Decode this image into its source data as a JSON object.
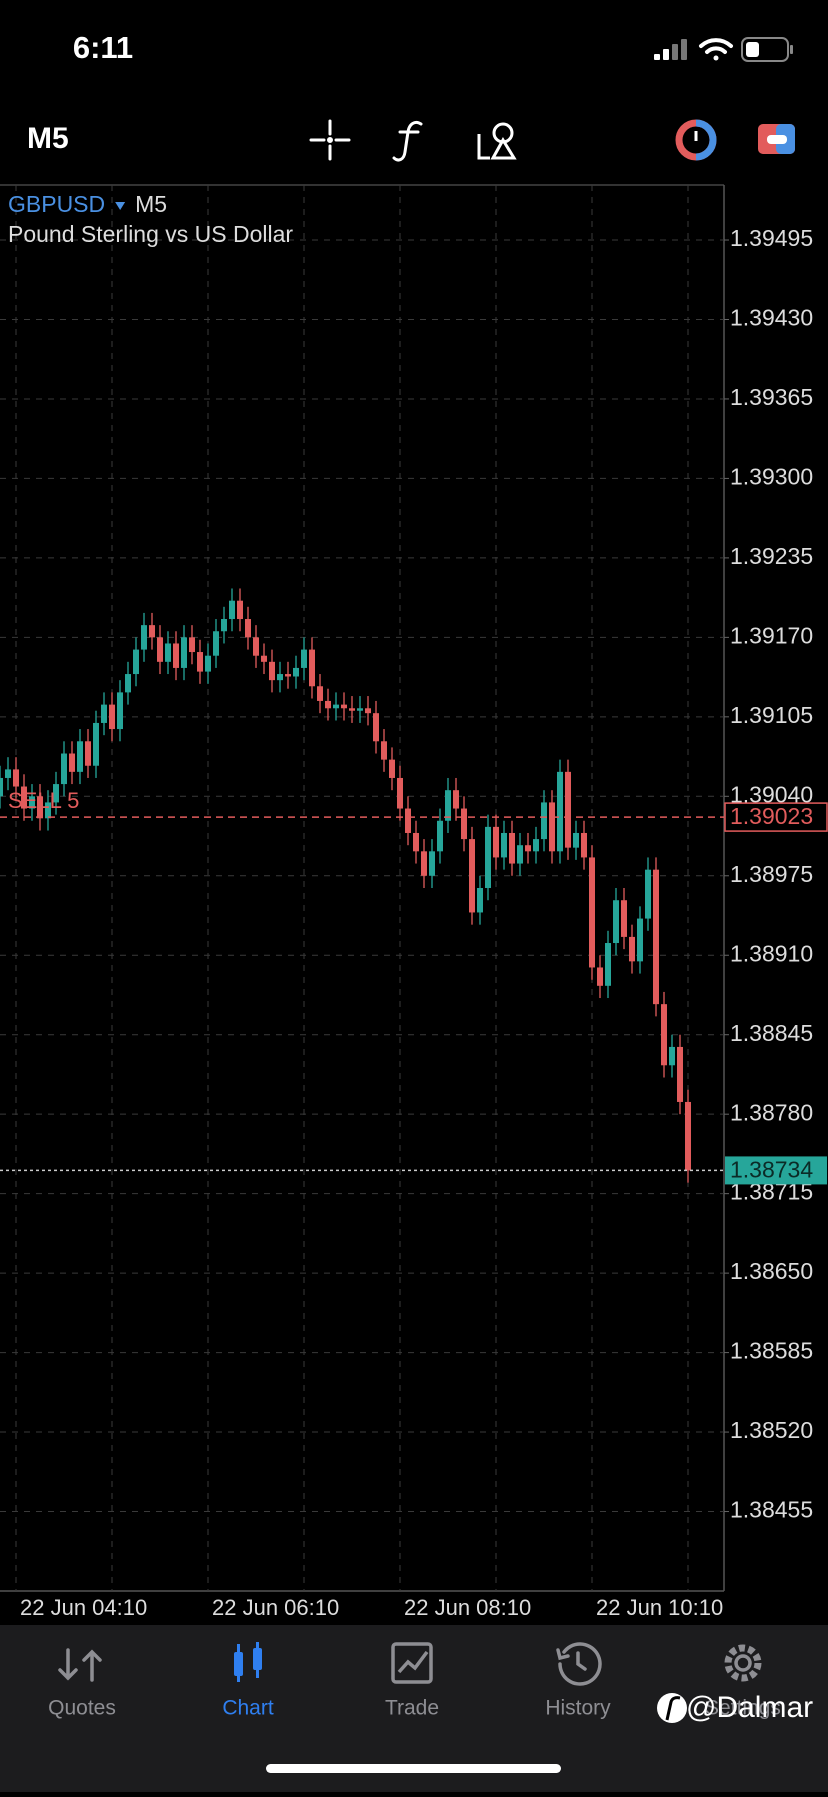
{
  "status_bar": {
    "time": "6:11"
  },
  "toolbar": {
    "timeframe": "M5"
  },
  "chart_data": {
    "type": "candlestick",
    "symbol": "GBPUSD",
    "timeframe": "M5",
    "title": "Pound Sterling vs US Dollar",
    "up_color": "#26a69a",
    "down_color": "#e25c5c",
    "grid": true,
    "ylim": [
      1.3839,
      1.3954
    ],
    "yticks": [
      1.39495,
      {
        "value": 1.3943,
        "label": "1.39430"
      },
      1.39365,
      {
        "value": 1.393,
        "label": "1.39300"
      },
      1.39235,
      {
        "value": 1.3917,
        "label": "1.39170"
      },
      1.39105,
      {
        "value": 1.3904,
        "label": "1.39040"
      },
      1.38975,
      {
        "value": 1.3891,
        "label": "1.38910"
      },
      1.38845,
      {
        "value": 1.3878,
        "label": "1.38780"
      },
      1.38715,
      {
        "value": 1.3865,
        "label": "1.38650"
      },
      1.38585,
      {
        "value": 1.3852,
        "label": "1.38520"
      },
      1.38455
    ],
    "categories": [
      null,
      null,
      "22 Jun 04:10",
      null,
      null,
      null,
      null,
      null,
      null,
      null,
      null,
      null,
      null,
      null,
      null,
      null,
      null,
      null,
      null,
      null,
      null,
      null,
      null,
      null,
      null,
      null,
      "22 Jun 06:10",
      null,
      null,
      null,
      null,
      null,
      null,
      null,
      null,
      null,
      null,
      null,
      null,
      null,
      null,
      null,
      null,
      null,
      null,
      null,
      null,
      null,
      null,
      null,
      "22 Jun 08:10",
      null,
      null,
      null,
      null,
      null,
      null,
      null,
      null,
      null,
      null,
      null,
      null,
      null,
      null,
      null,
      null,
      null,
      null,
      null,
      null,
      null,
      null,
      null,
      "22 Jun 10:10",
      null,
      null,
      null,
      null,
      null,
      null,
      null,
      null,
      null,
      null,
      null,
      null
    ],
    "open": [
      1.3904,
      1.39055,
      1.39062,
      1.39048,
      1.3903,
      1.3904,
      1.39022,
      1.39035,
      1.3905,
      1.39075,
      1.3906,
      1.39085,
      1.39065,
      1.391,
      1.39115,
      1.39095,
      1.39125,
      1.3914,
      1.3916,
      1.3918,
      1.3917,
      1.3915,
      1.39165,
      1.39145,
      1.3917,
      1.39158,
      1.39142,
      1.39155,
      1.39175,
      1.39185,
      1.392,
      1.39185,
      1.3917,
      1.39155,
      1.3915,
      1.39135,
      1.3914,
      1.39138,
      1.39145,
      1.3916,
      1.3913,
      1.39118,
      1.39112,
      1.39115,
      1.39112,
      1.3911,
      1.39112,
      1.39108,
      1.39085,
      1.3907,
      1.39055,
      1.3903,
      1.3901,
      1.38995,
      1.38975,
      1.38995,
      1.3902,
      1.39045,
      1.3903,
      1.39005,
      1.38945,
      1.38965,
      1.39015,
      1.3899,
      1.3901,
      1.38985,
      1.39,
      1.38995,
      1.39005,
      1.39035,
      1.38995,
      1.3906,
      1.38998,
      1.3901,
      1.3899,
      1.389,
      1.38885,
      1.3892,
      1.38955,
      1.38925,
      1.38905,
      1.3894,
      1.3898,
      1.3887,
      1.3882,
      1.38835,
      1.3879
    ],
    "high": [
      1.39065,
      1.39072,
      1.39072,
      1.39058,
      1.3905,
      1.3905,
      1.39045,
      1.3906,
      1.39085,
      1.39085,
      1.39095,
      1.39095,
      1.3911,
      1.39125,
      1.39125,
      1.39135,
      1.3915,
      1.3917,
      1.3919,
      1.3919,
      1.3918,
      1.39175,
      1.39175,
      1.3918,
      1.3918,
      1.39168,
      1.39165,
      1.39185,
      1.39195,
      1.3921,
      1.3921,
      1.39195,
      1.3918,
      1.39165,
      1.3916,
      1.3915,
      1.3915,
      1.39155,
      1.3917,
      1.3917,
      1.3914,
      1.39128,
      1.39125,
      1.39125,
      1.39122,
      1.39122,
      1.39122,
      1.39118,
      1.39095,
      1.3908,
      1.39065,
      1.3904,
      1.3902,
      1.39005,
      1.39005,
      1.3903,
      1.39055,
      1.39055,
      1.3904,
      1.39015,
      1.38975,
      1.39025,
      1.39025,
      1.3902,
      1.3902,
      1.3901,
      1.3901,
      1.39015,
      1.39045,
      1.39045,
      1.3907,
      1.3907,
      1.3902,
      1.3902,
      1.39,
      1.3891,
      1.3893,
      1.38965,
      1.38965,
      1.38935,
      1.3895,
      1.3899,
      1.3899,
      1.3888,
      1.38845,
      1.38845,
      1.388
    ],
    "low": [
      1.3903,
      1.39045,
      1.39038,
      1.3902,
      1.3902,
      1.39012,
      1.39012,
      1.39025,
      1.3904,
      1.3905,
      1.3905,
      1.39055,
      1.39055,
      1.3909,
      1.39085,
      1.39085,
      1.39115,
      1.3913,
      1.3915,
      1.3916,
      1.3914,
      1.3914,
      1.39135,
      1.39135,
      1.39148,
      1.39132,
      1.39132,
      1.39145,
      1.39165,
      1.39175,
      1.39175,
      1.3916,
      1.39145,
      1.3914,
      1.39125,
      1.39125,
      1.39128,
      1.39128,
      1.39135,
      1.3912,
      1.39108,
      1.39102,
      1.39102,
      1.39102,
      1.391,
      1.391,
      1.39098,
      1.39075,
      1.3906,
      1.39045,
      1.3902,
      1.39,
      1.38985,
      1.38965,
      1.38965,
      1.38985,
      1.3901,
      1.3902,
      1.38995,
      1.38935,
      1.38935,
      1.38955,
      1.3898,
      1.3898,
      1.38975,
      1.38975,
      1.38985,
      1.38985,
      1.38995,
      1.38985,
      1.38985,
      1.38988,
      1.38988,
      1.3898,
      1.3889,
      1.38875,
      1.38875,
      1.3891,
      1.38915,
      1.38895,
      1.38895,
      1.3893,
      1.3886,
      1.3881,
      1.3881,
      1.3878,
      1.38724
    ],
    "close": [
      1.39055,
      1.39062,
      1.39048,
      1.3903,
      1.3904,
      1.39022,
      1.39035,
      1.3905,
      1.39075,
      1.3906,
      1.39085,
      1.39065,
      1.391,
      1.39115,
      1.39095,
      1.39125,
      1.3914,
      1.3916,
      1.3918,
      1.3917,
      1.3915,
      1.39165,
      1.39145,
      1.3917,
      1.39158,
      1.39142,
      1.39155,
      1.39175,
      1.39185,
      1.392,
      1.39185,
      1.3917,
      1.39155,
      1.3915,
      1.39135,
      1.3914,
      1.39138,
      1.39145,
      1.3916,
      1.3913,
      1.39118,
      1.39112,
      1.39115,
      1.39112,
      1.3911,
      1.39112,
      1.39108,
      1.39085,
      1.3907,
      1.39055,
      1.3903,
      1.3901,
      1.38995,
      1.38975,
      1.38995,
      1.3902,
      1.39045,
      1.3903,
      1.39005,
      1.38945,
      1.38965,
      1.39015,
      1.3899,
      1.3901,
      1.38985,
      1.39,
      1.38995,
      1.39005,
      1.39035,
      1.38995,
      1.3906,
      1.38998,
      1.3901,
      1.3899,
      1.389,
      1.38885,
      1.3892,
      1.38955,
      1.38925,
      1.38905,
      1.3894,
      1.3898,
      1.3887,
      1.3882,
      1.38835,
      1.3879,
      1.38734
    ],
    "order_line": {
      "label": "SELL 5",
      "value": 1.39023,
      "color": "#e25c5c"
    },
    "bid_line": {
      "value": 1.38734,
      "color": "#26a69a"
    }
  },
  "tab_bar": {
    "tabs": [
      "Quotes",
      "Chart",
      "Trade",
      "History",
      "Settings"
    ],
    "active": 1
  },
  "watermark": "@Dalmar"
}
